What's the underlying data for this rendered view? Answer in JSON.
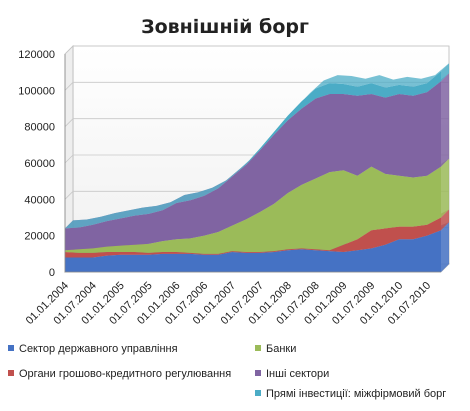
{
  "chart_data": {
    "type": "area",
    "stacked": true,
    "style": "3d",
    "title": "Зовнішній борг",
    "xlabel": "",
    "ylabel": "",
    "ylim": [
      0,
      120000
    ],
    "yticks": [
      0,
      20000,
      40000,
      60000,
      80000,
      100000,
      120000
    ],
    "ytick_labels": [
      "0",
      "20000",
      "40000",
      "60000",
      "80000",
      "100000",
      "120000"
    ],
    "xtick_labels": [
      "01.01.2004",
      "01.07.2004",
      "01.01.2005",
      "01.07.2005",
      "01.01.2006",
      "01.07.2006",
      "01.01.2007",
      "01.07.2007",
      "01.01.2008",
      "01.07.2008",
      "01.01.2009",
      "01.07.2009",
      "01.01.2010",
      "01.07.2010"
    ],
    "x_quarters": [
      "01.01.2004",
      "01.04.2004",
      "01.07.2004",
      "01.10.2004",
      "01.01.2005",
      "01.04.2005",
      "01.07.2005",
      "01.10.2005",
      "01.01.2006",
      "01.04.2006",
      "01.07.2006",
      "01.10.2006",
      "01.01.2007",
      "01.04.2007",
      "01.07.2007",
      "01.10.2007",
      "01.01.2008",
      "01.04.2008",
      "01.07.2008",
      "01.10.2008",
      "01.01.2009",
      "01.04.2009",
      "01.07.2009",
      "01.10.2009",
      "01.01.2010",
      "01.04.2010",
      "01.07.2010",
      "01.10.2010"
    ],
    "grid": true,
    "legend_position": "bottom",
    "series": [
      {
        "name": "Сектор державного управління",
        "color": "#4572c4",
        "values": [
          8000,
          8000,
          8000,
          9000,
          9500,
          9500,
          9500,
          10000,
          10000,
          10000,
          9500,
          9500,
          11000,
          10500,
          10500,
          11000,
          12000,
          12500,
          12000,
          11500,
          11000,
          12000,
          13000,
          15000,
          18000,
          18000,
          20000,
          23000
        ]
      },
      {
        "name": "Органи грошово-кредитного регулювання",
        "color": "#c0504d",
        "values": [
          3000,
          2500,
          2500,
          2000,
          1500,
          1500,
          1000,
          1000,
          1000,
          500,
          500,
          500,
          500,
          500,
          500,
          500,
          500,
          500,
          500,
          500,
          4000,
          6000,
          10000,
          9000,
          7000,
          7000,
          6000,
          7000
        ]
      },
      {
        "name": "Банки",
        "color": "#9bbb59",
        "values": [
          1000,
          2000,
          2500,
          3000,
          3500,
          4000,
          5000,
          6000,
          7000,
          8000,
          10000,
          12000,
          14000,
          18000,
          22000,
          26000,
          31000,
          35000,
          39000,
          43000,
          41000,
          35000,
          35000,
          30000,
          28000,
          27000,
          27000,
          28000
        ]
      },
      {
        "name": "Інші сектори",
        "color": "#8064a2",
        "values": [
          12000,
          12000,
          13000,
          14000,
          15000,
          16000,
          16500,
          17000,
          20000,
          21000,
          22000,
          24000,
          27000,
          30000,
          34000,
          38000,
          40000,
          42000,
          44000,
          43000,
          42000,
          44000,
          40000,
          42000,
          45000,
          45000,
          46000,
          47000
        ]
      },
      {
        "name": "Прямі інвестиції: міжфірмовий борг",
        "color": "#4bacc6",
        "values": [
          0,
          0,
          0,
          0,
          0,
          0,
          0,
          0,
          0,
          0,
          0,
          0,
          0,
          500,
          1000,
          1500,
          2500,
          4000,
          5500,
          6000,
          5500,
          5000,
          6000,
          5500,
          5000,
          5000,
          5000,
          5500
        ]
      }
    ]
  }
}
